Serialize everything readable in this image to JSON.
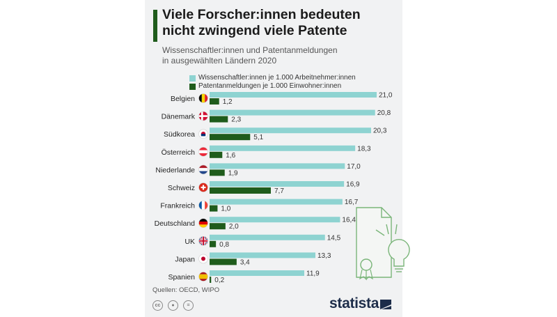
{
  "header": {
    "title": "Viele Forscher:innen bedeuten\nnicht zwingend viele Patente",
    "subtitle": "Wissenschaftler:innen und Patentanmeldungen\nin ausgewählten Ländern 2020"
  },
  "legend": [
    {
      "label": "Wissenschaftler:innen je 1.000 Arbeitnehmer:innen",
      "color": "#8ed3d1"
    },
    {
      "label": "Patentanmeldungen je 1.000 Einwohner:innen",
      "color": "#1f5c1c"
    }
  ],
  "footer": {
    "source": "Quellen: OECD, WIPO",
    "brand": "statista",
    "license_icons": [
      "cc-icon",
      "by-icon",
      "nd-icon"
    ]
  },
  "chart_data": {
    "type": "bar",
    "orientation": "horizontal",
    "categories": [
      "Belgien",
      "Dänemark",
      "Südkorea",
      "Österreich",
      "Niederlande",
      "Schweiz",
      "Frankreich",
      "Deutschland",
      "UK",
      "Japan",
      "Spanien"
    ],
    "flags": [
      "be",
      "dk",
      "kr",
      "at",
      "nl",
      "ch",
      "fr",
      "de",
      "uk",
      "jp",
      "es"
    ],
    "series": [
      {
        "name": "Wissenschaftler:innen je 1.000 Arbeitnehmer:innen",
        "color": "#8ed3d1",
        "values": [
          21.0,
          20.8,
          20.3,
          18.3,
          17.0,
          16.9,
          16.7,
          16.4,
          14.5,
          13.3,
          11.9
        ],
        "labels": [
          "21,0",
          "20,8",
          "20,3",
          "18,3",
          "17,0",
          "16,9",
          "16,7",
          "16,4",
          "14,5",
          "13,3",
          "11,9"
        ]
      },
      {
        "name": "Patentanmeldungen je 1.000 Einwohner:innen",
        "color": "#1f5c1c",
        "values": [
          1.2,
          2.3,
          5.1,
          1.6,
          1.9,
          7.7,
          1.0,
          2.0,
          0.8,
          3.4,
          0.2
        ],
        "labels": [
          "1,2",
          "2,3",
          "5,1",
          "1,6",
          "1,9",
          "7,7",
          "1,0",
          "2,0",
          "0,8",
          "3,4",
          "0,2"
        ]
      }
    ],
    "xlim": [
      0,
      21
    ],
    "grid": false,
    "legend_position": "top-left"
  }
}
